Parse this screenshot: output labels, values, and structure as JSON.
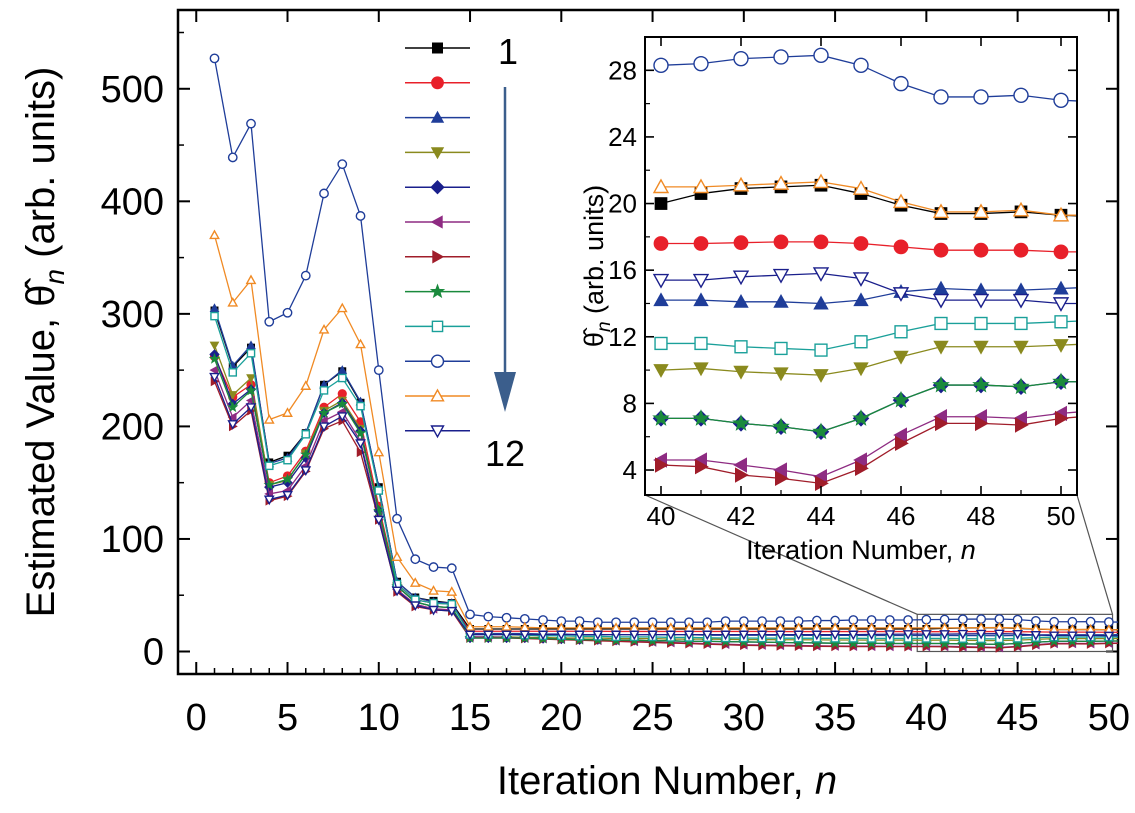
{
  "chart_data": [
    {
      "type": "line",
      "xlabel": "Iteration Number, n",
      "ylabel": "Estimated Value, θ̂n (arb. units)",
      "ylabel_prefix": "Estimated Value, ",
      "ylabel_suffix": " (arb. units)",
      "xlabel_prefix": "Iteration Number, ",
      "xlabel_italic": "n",
      "xlim": [
        -1,
        50.5
      ],
      "ylim": [
        -20,
        570
      ],
      "xticks": [
        0,
        5,
        10,
        15,
        20,
        25,
        30,
        35,
        40,
        45,
        50
      ],
      "yticks": [
        0,
        100,
        200,
        300,
        400,
        500
      ],
      "legend_start_label": "1",
      "legend_end_label": "12",
      "legend_placement": "top-center",
      "zoom_region": {
        "x": [
          39.5,
          50.2
        ],
        "y": [
          0,
          33
        ]
      },
      "series": [
        {
          "color": "#000000",
          "marker": "square",
          "filled": true,
          "values": [
            303,
            253,
            270,
            168,
            174,
            194,
            237,
            249,
            221,
            146,
            62,
            48,
            45,
            43,
            20,
            20,
            20,
            20,
            20,
            20,
            20,
            20,
            20,
            20,
            20,
            20,
            20,
            20,
            20,
            20,
            20,
            20,
            20,
            20,
            20,
            20,
            20,
            20,
            20,
            20,
            20.6,
            20.9,
            21,
            21.1,
            20.6,
            19.9,
            19.4,
            19.4,
            19.5,
            19.3,
            19.2
          ]
        },
        {
          "color": "#e8202a",
          "marker": "circle",
          "filled": true,
          "values": [
            262,
            226,
            237,
            150,
            156,
            178,
            217,
            229,
            204,
            129,
            60,
            46,
            43,
            42,
            18,
            18,
            18,
            18,
            18,
            18,
            18,
            18,
            17.8,
            17.8,
            17.8,
            17.8,
            17.8,
            17.8,
            17.8,
            17.8,
            17.8,
            17.7,
            17.7,
            17.7,
            17.7,
            17.7,
            17.7,
            17.7,
            17.7,
            17.6,
            17.6,
            17.65,
            17.7,
            17.7,
            17.6,
            17.4,
            17.2,
            17.2,
            17.2,
            17.1,
            17.1
          ]
        },
        {
          "color": "#1f3d99",
          "marker": "triangle-up",
          "filled": true,
          "values": [
            305,
            254,
            272,
            167,
            172,
            194,
            237,
            250,
            222,
            146,
            62,
            48,
            44,
            43,
            16,
            16,
            16,
            16,
            15.5,
            15.5,
            15,
            15,
            15,
            15,
            15,
            15,
            15,
            14.5,
            14.5,
            14.5,
            14.5,
            14.5,
            14.3,
            14.3,
            14.3,
            14.3,
            14.2,
            14.2,
            14.2,
            14.2,
            14.2,
            14.1,
            14.1,
            14,
            14.2,
            14.7,
            14.9,
            14.8,
            14.8,
            14.9,
            15
          ]
        },
        {
          "color": "#8a8a1e",
          "marker": "triangle-down",
          "filled": true,
          "values": [
            272,
            228,
            243,
            148,
            152,
            176,
            214,
            223,
            198,
            126,
            58,
            44,
            40,
            39,
            13,
            13,
            13,
            12.5,
            12.5,
            12,
            12,
            12,
            11.5,
            11.5,
            11.5,
            11,
            11,
            11,
            10.8,
            10.6,
            10.6,
            10.4,
            10.4,
            10.3,
            10.2,
            10.2,
            10.1,
            10.1,
            10.1,
            10,
            10.1,
            9.9,
            9.8,
            9.7,
            10.1,
            10.8,
            11.4,
            11.4,
            11.4,
            11.5,
            11.6
          ]
        },
        {
          "color": "#1a1f8c",
          "marker": "diamond",
          "filled": true,
          "values": [
            264,
            220,
            233,
            146,
            150,
            172,
            212,
            221,
            196,
            125,
            58,
            44,
            40,
            39,
            12,
            12,
            12,
            12,
            11.5,
            11,
            10.5,
            10.5,
            10,
            10,
            9.5,
            9.5,
            9,
            9,
            8.8,
            8.5,
            8.3,
            8,
            7.8,
            7.6,
            7.4,
            7.3,
            7.2,
            7.1,
            7.1,
            7.1,
            7.1,
            6.8,
            6.6,
            6.3,
            7.1,
            8.2,
            9.1,
            9.1,
            9,
            9.3,
            9.3
          ]
        },
        {
          "color": "#8e2b82",
          "marker": "triangle-left",
          "filled": true,
          "values": [
            250,
            208,
            223,
            140,
            143,
            165,
            205,
            213,
            187,
            120,
            55,
            42,
            38,
            37,
            13,
            13,
            12.5,
            12,
            11.5,
            11,
            10.5,
            10,
            9.5,
            9,
            8.5,
            8,
            7.5,
            7,
            6.5,
            6,
            5.8,
            5.5,
            5.3,
            5.1,
            4.9,
            4.8,
            4.7,
            4.6,
            4.6,
            4.6,
            4.6,
            4.3,
            4,
            3.6,
            4.6,
            6.1,
            7.2,
            7.2,
            7.1,
            7.4,
            7.6
          ]
        },
        {
          "color": "#a01d2a",
          "marker": "triangle-right",
          "filled": true,
          "values": [
            240,
            200,
            214,
            134,
            138,
            160,
            198,
            205,
            177,
            117,
            53,
            40,
            37,
            36,
            12,
            12,
            12,
            11.5,
            11,
            10.5,
            10,
            9.5,
            9,
            8.5,
            8,
            7.5,
            7,
            6.5,
            6,
            5.5,
            5.2,
            5,
            4.8,
            4.6,
            4.5,
            4.4,
            4.3,
            4.3,
            4.3,
            4.3,
            4.2,
            3.7,
            3.5,
            3.2,
            4.1,
            5.6,
            6.8,
            6.8,
            6.7,
            7.1,
            7.3
          ]
        },
        {
          "color": "#1a8a3c",
          "marker": "star",
          "filled": true,
          "values": [
            260,
            217,
            232,
            148,
            153,
            175,
            212,
            220,
            194,
            125,
            58,
            44,
            40,
            39,
            12,
            12,
            12,
            12,
            11.5,
            11,
            10.5,
            10.5,
            10,
            10,
            9.5,
            9.5,
            9,
            9,
            8.8,
            8.5,
            8.3,
            8,
            7.8,
            7.6,
            7.4,
            7.3,
            7.2,
            7.1,
            7.1,
            7.1,
            7.1,
            6.8,
            6.6,
            6.3,
            7.1,
            8.2,
            9.1,
            9.1,
            9,
            9.3,
            9.3
          ]
        },
        {
          "color": "#1aa09a",
          "marker": "square",
          "filled": false,
          "values": [
            298,
            248,
            265,
            165,
            170,
            193,
            232,
            243,
            218,
            143,
            60,
            46,
            43,
            42,
            15,
            15,
            15,
            14.5,
            14,
            14,
            13.5,
            13.5,
            13,
            13,
            13,
            12.5,
            12.5,
            12.2,
            12,
            12,
            11.9,
            11.8,
            11.8,
            11.7,
            11.7,
            11.7,
            11.6,
            11.6,
            11.6,
            11.6,
            11.6,
            11.4,
            11.3,
            11.2,
            11.7,
            12.3,
            12.8,
            12.8,
            12.8,
            12.9,
            13
          ]
        },
        {
          "color": "#1f3d99",
          "marker": "circle",
          "filled": false,
          "values": [
            527,
            439,
            469,
            293,
            301,
            334,
            407,
            433,
            387,
            250,
            118,
            82,
            75,
            74,
            33,
            31,
            30,
            29,
            28,
            27,
            27,
            26,
            26,
            26,
            26,
            26,
            26,
            26,
            27,
            27,
            27,
            27,
            27,
            27.5,
            27.5,
            28,
            28,
            28,
            28,
            28.3,
            28.4,
            28.7,
            28.8,
            28.9,
            28.3,
            27.2,
            26.4,
            26.4,
            26.5,
            26.2,
            26.1
          ]
        },
        {
          "color": "#f08a24",
          "marker": "triangle-up",
          "filled": false,
          "values": [
            370,
            310,
            330,
            206,
            212,
            236,
            286,
            305,
            273,
            177,
            84,
            61,
            54,
            53,
            22,
            22,
            22,
            21.5,
            21,
            21,
            21,
            21,
            21,
            21,
            21,
            21,
            21,
            21,
            21,
            21,
            21,
            21,
            21,
            21,
            21,
            21,
            21,
            21,
            21,
            21,
            21,
            21.1,
            21.2,
            21.3,
            20.9,
            20.1,
            19.5,
            19.5,
            19.6,
            19.3,
            19.3
          ]
        },
        {
          "color": "#1a1f8c",
          "marker": "triangle-down",
          "filled": false,
          "values": [
            244,
            202,
            217,
            135,
            139,
            161,
            200,
            209,
            185,
            117,
            54,
            41,
            37,
            36,
            15,
            15,
            15,
            15,
            15,
            15,
            15,
            15,
            15,
            15,
            15,
            15,
            15,
            15,
            15,
            15,
            15,
            15,
            15,
            15,
            15,
            15,
            15.2,
            15.3,
            15.4,
            15.4,
            15.4,
            15.6,
            15.7,
            15.8,
            15.5,
            14.6,
            14.2,
            14.2,
            14.2,
            14,
            14
          ]
        }
      ]
    },
    {
      "type": "line",
      "inset": true,
      "xlabel": "Iteration Number, n",
      "ylabel": "θ̂n (arb. units)",
      "ylabel_suffix": " (arb. units)",
      "xlabel_prefix": "Iteration Number, ",
      "xlabel_italic": "n",
      "xlim": [
        39.6,
        50.4
      ],
      "ylim": [
        2.5,
        30
      ],
      "xticks": [
        40,
        42,
        44,
        46,
        48,
        50
      ],
      "yticks": [
        4,
        8,
        12,
        16,
        20,
        24,
        28
      ],
      "x_start": 40,
      "series_from_main_index": 40
    }
  ]
}
